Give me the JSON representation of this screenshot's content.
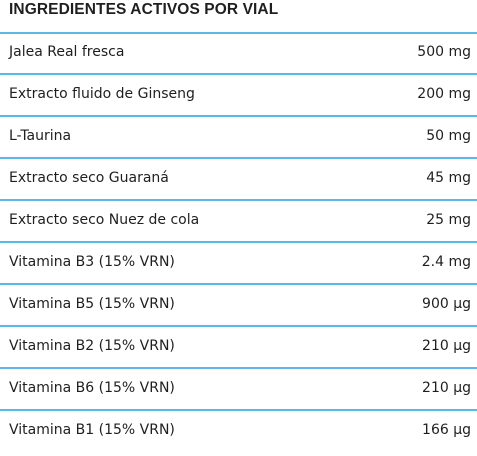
{
  "table": {
    "title": "INGREDIENTES ACTIVOS POR VIAL",
    "rows": [
      {
        "name": "Jalea Real fresca",
        "amount": "500 mg"
      },
      {
        "name": "Extracto fluido de Ginseng",
        "amount": "200 mg"
      },
      {
        "name": "L-Taurina",
        "amount": "50 mg"
      },
      {
        "name": "Extracto seco Guaraná",
        "amount": "45 mg"
      },
      {
        "name": "Extracto seco Nuez de cola",
        "amount": "25 mg"
      },
      {
        "name": "Vitamina B3 (15% VRN)",
        "amount": "2.4 mg"
      },
      {
        "name": "Vitamina B5 (15% VRN)",
        "amount": "900 µg"
      },
      {
        "name": "Vitamina B2 (15% VRN)",
        "amount": "210 µg"
      },
      {
        "name": "Vitamina B6 (15% VRN)",
        "amount": "210 µg"
      },
      {
        "name": "Vitamina B1 (15% VRN)",
        "amount": "166 µg"
      }
    ]
  },
  "colors": {
    "divider": "#5bb8e8",
    "text": "#1f1f1f",
    "background": "#ffffff"
  }
}
